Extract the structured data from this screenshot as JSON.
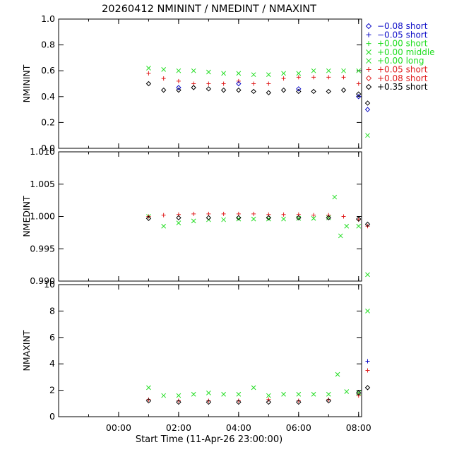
{
  "chart_data": {
    "type": "scatter",
    "title": "20260412 NMININT / NMEDINT / NMAXINT",
    "xlabel": "Start Time (11-Apr-26 23:00:00)",
    "x_units": "hours since 11-Apr-26 23:00:00",
    "xlim": [
      -1,
      9.1
    ],
    "x_ticks": [
      {
        "value": 1,
        "label": "00:00"
      },
      {
        "value": 3,
        "label": "02:00"
      },
      {
        "value": 5,
        "label": "04:00"
      },
      {
        "value": 7,
        "label": "06:00"
      },
      {
        "value": 9,
        "label": "08:00"
      }
    ],
    "grid": false,
    "legend_position": "right",
    "legend": [
      {
        "label": "−0.08 short",
        "marker": "diamond",
        "color": "#1010c8"
      },
      {
        "label": "−0.05 short",
        "marker": "plus",
        "color": "#1010c8"
      },
      {
        "label": "+0.00 short",
        "marker": "plus",
        "color": "#22dd22"
      },
      {
        "label": "+0.00 middle",
        "marker": "cross",
        "color": "#22dd22"
      },
      {
        "label": "+0.00 long",
        "marker": "cross",
        "color": "#22dd22"
      },
      {
        "label": "+0.05 short",
        "marker": "plus",
        "color": "#e02020"
      },
      {
        "label": "+0.08 short",
        "marker": "diamond",
        "color": "#e02020"
      },
      {
        "label": "+0.35 short",
        "marker": "diamond",
        "color": "#000000"
      }
    ],
    "panels": [
      {
        "ylabel": "NMININT",
        "ylim": [
          0,
          1
        ],
        "y_ticks": [
          "0.0",
          "0.2",
          "0.4",
          "0.6",
          "0.8",
          "1.0"
        ],
        "series": [
          {
            "marker": "cross",
            "color": "#22dd22",
            "x": [
              2.0,
              2.5,
              3.0,
              3.5,
              4.0,
              4.5,
              5.0,
              5.5,
              6.0,
              6.5,
              7.0,
              7.5,
              8.0,
              8.5,
              9.0,
              9.3
            ],
            "y": [
              0.62,
              0.61,
              0.6,
              0.6,
              0.59,
              0.58,
              0.58,
              0.57,
              0.57,
              0.58,
              0.58,
              0.6,
              0.6,
              0.6,
              0.6,
              0.1
            ]
          },
          {
            "marker": "plus",
            "color": "#e02020",
            "x": [
              2.0,
              2.5,
              3.0,
              3.5,
              4.0,
              4.5,
              5.0,
              5.5,
              6.0,
              6.5,
              7.0,
              7.5,
              8.0,
              8.5,
              9.0
            ],
            "y": [
              0.58,
              0.54,
              0.52,
              0.5,
              0.5,
              0.5,
              0.52,
              0.5,
              0.5,
              0.54,
              0.55,
              0.55,
              0.55,
              0.55,
              0.5
            ]
          },
          {
            "marker": "diamond",
            "color": "#000000",
            "x": [
              2.0,
              2.5,
              3.0,
              3.5,
              4.0,
              4.5,
              5.0,
              5.5,
              6.0,
              6.5,
              7.0,
              7.5,
              8.0,
              8.5,
              9.0,
              9.3
            ],
            "y": [
              0.5,
              0.45,
              0.45,
              0.47,
              0.46,
              0.45,
              0.45,
              0.44,
              0.43,
              0.45,
              0.44,
              0.44,
              0.44,
              0.45,
              0.42,
              0.35
            ]
          },
          {
            "marker": "diamond",
            "color": "#1010c8",
            "x": [
              3.0,
              5.0,
              7.0,
              9.0,
              9.3
            ],
            "y": [
              0.47,
              0.5,
              0.46,
              0.4,
              0.3
            ]
          }
        ]
      },
      {
        "ylabel": "NMEDINT",
        "ylim": [
          0.99,
          1.01
        ],
        "y_ticks": [
          "0.990",
          "0.995",
          "1.000",
          "1.005",
          "1.010"
        ],
        "series": [
          {
            "marker": "cross",
            "color": "#22dd22",
            "x": [
              2.0,
              2.5,
              3.0,
              3.5,
              4.0,
              4.5,
              5.0,
              5.5,
              6.0,
              6.5,
              7.0,
              7.5,
              8.0,
              8.2,
              8.4,
              8.6,
              9.0,
              9.3
            ],
            "y": [
              1.0,
              0.9985,
              0.999,
              0.9993,
              0.9995,
              0.9995,
              0.9996,
              0.9996,
              0.9996,
              0.9996,
              0.9997,
              0.9997,
              0.9998,
              1.003,
              0.997,
              0.9985,
              0.9985,
              0.991
            ]
          },
          {
            "marker": "plus",
            "color": "#e02020",
            "x": [
              2.0,
              2.5,
              3.0,
              3.5,
              4.0,
              4.5,
              5.0,
              5.5,
              6.0,
              6.5,
              7.0,
              7.5,
              8.0,
              8.5,
              9.0,
              9.3
            ],
            "y": [
              1.0,
              1.0002,
              1.0003,
              1.0004,
              1.0004,
              1.0004,
              1.0004,
              1.0004,
              1.0003,
              1.0003,
              1.0003,
              1.0002,
              1.0002,
              1.0,
              0.9995,
              0.9985
            ]
          },
          {
            "marker": "diamond",
            "color": "#000000",
            "x": [
              2.0,
              3.0,
              4.0,
              5.0,
              6.0,
              7.0,
              8.0,
              9.0,
              9.3
            ],
            "y": [
              0.9997,
              0.9998,
              0.9998,
              0.9998,
              0.9998,
              0.9998,
              0.9998,
              0.9996,
              0.9988
            ]
          }
        ]
      },
      {
        "ylabel": "NMAXINT",
        "ylim": [
          0,
          10
        ],
        "y_ticks": [
          "0",
          "2",
          "4",
          "6",
          "8",
          "10"
        ],
        "series": [
          {
            "marker": "cross",
            "color": "#22dd22",
            "x": [
              2.0,
              2.5,
              3.0,
              3.5,
              4.0,
              4.5,
              5.0,
              5.5,
              6.0,
              6.5,
              7.0,
              7.5,
              8.0,
              8.3,
              8.6,
              9.0,
              9.3
            ],
            "y": [
              2.2,
              1.6,
              1.6,
              1.7,
              1.8,
              1.7,
              1.7,
              2.2,
              1.6,
              1.7,
              1.7,
              1.7,
              1.7,
              3.2,
              1.9,
              1.8,
              8.0
            ]
          },
          {
            "marker": "plus",
            "color": "#e02020",
            "x": [
              2.0,
              3.0,
              4.0,
              5.0,
              6.0,
              7.0,
              8.0,
              9.0,
              9.3
            ],
            "y": [
              1.3,
              1.2,
              1.2,
              1.2,
              1.3,
              1.2,
              1.3,
              1.6,
              3.5
            ]
          },
          {
            "marker": "diamond",
            "color": "#000000",
            "x": [
              2.0,
              3.0,
              4.0,
              5.0,
              6.0,
              7.0,
              8.0,
              9.0,
              9.3
            ],
            "y": [
              1.2,
              1.1,
              1.1,
              1.1,
              1.1,
              1.1,
              1.2,
              1.8,
              2.2
            ]
          },
          {
            "marker": "plus",
            "color": "#1010c8",
            "x": [
              9.3
            ],
            "y": [
              4.2
            ]
          }
        ]
      }
    ]
  }
}
